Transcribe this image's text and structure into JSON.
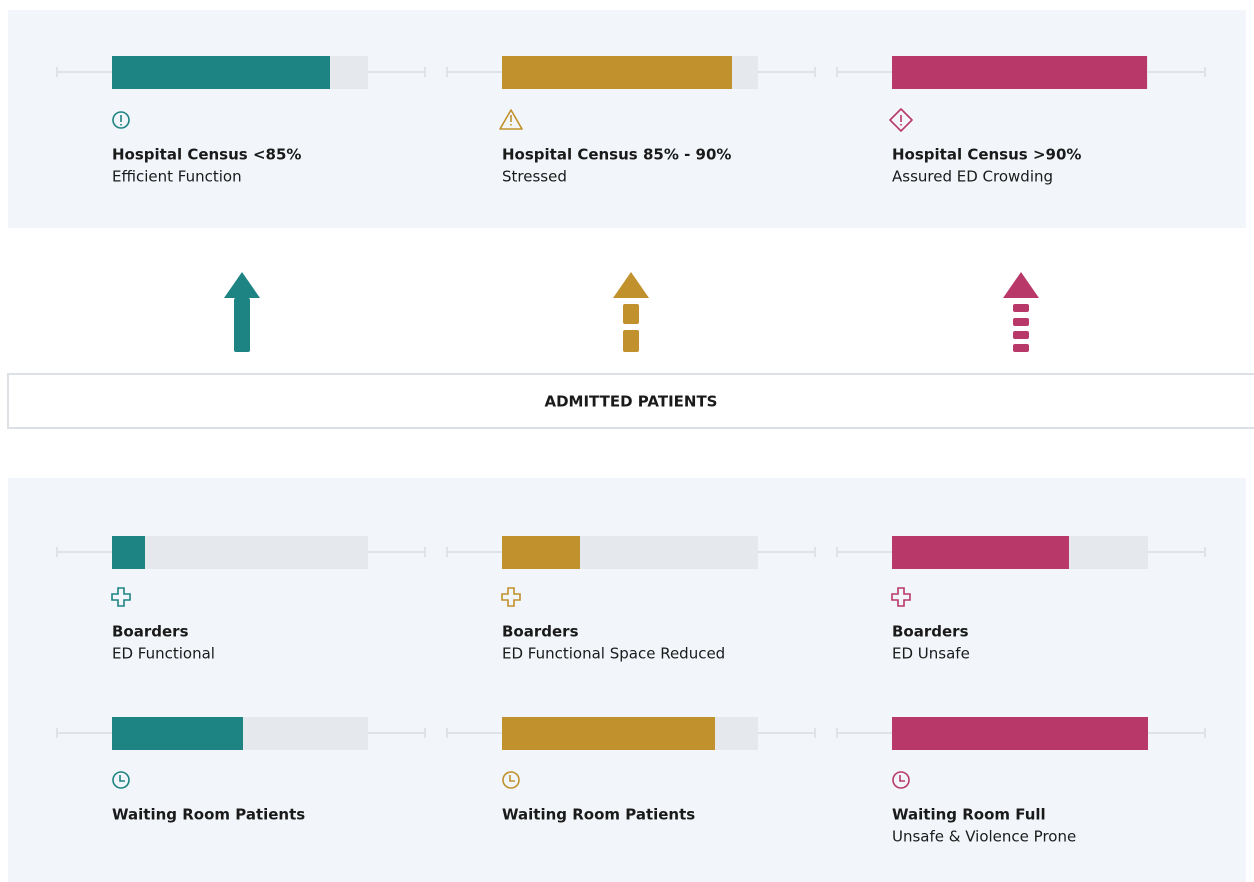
{
  "top": {
    "levels": [
      {
        "title": "Hospital Census <85%",
        "subtitle": "Efficient Function"
      },
      {
        "title": "Hospital Census 85% - 90%",
        "subtitle": "Stressed"
      },
      {
        "title": "Hospital Census >90%",
        "subtitle": "Assured ED Crowding"
      }
    ]
  },
  "center": {
    "label": "ADMITTED PATIENTS"
  },
  "bottom": {
    "boarders": [
      {
        "title": "Boarders",
        "subtitle": "ED Functional"
      },
      {
        "title": "Boarders",
        "subtitle": "ED Functional Space Reduced"
      },
      {
        "title": "Boarders",
        "subtitle": "ED Unsafe"
      }
    ],
    "waiting": [
      {
        "title": "Waiting Room Patients"
      },
      {
        "title": "Waiting Room Patients"
      },
      {
        "title": "Waiting Room Full",
        "subtitle": "Unsafe & Violence Prone"
      }
    ]
  }
}
